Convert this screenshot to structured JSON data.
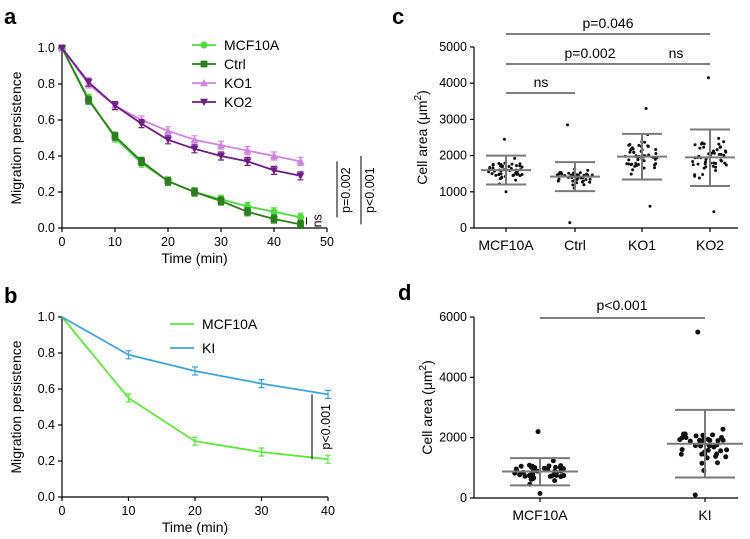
{
  "panels": {
    "a": "a",
    "b": "b",
    "c": "c",
    "d": "d"
  },
  "chart_data": [
    {
      "id": "a",
      "type": "line",
      "xlabel": "Time (min)",
      "ylabel": "Migration persistence",
      "xlim": [
        0,
        50
      ],
      "ylim": [
        0,
        1.0
      ],
      "xticks": [
        "0",
        "10",
        "20",
        "30",
        "40",
        "50"
      ],
      "yticks": [
        "0.0",
        "0.2",
        "0.4",
        "0.6",
        "0.8",
        "1.0"
      ],
      "x": [
        0,
        5,
        10,
        15,
        20,
        25,
        30,
        35,
        40,
        45
      ],
      "series": [
        {
          "name": "MCF10A",
          "color": "#4ddc3c",
          "marker": "circle",
          "values": [
            1.0,
            0.72,
            0.5,
            0.36,
            0.26,
            0.2,
            0.16,
            0.12,
            0.09,
            0.06
          ]
        },
        {
          "name": "Ctrl",
          "color": "#2a7f1c",
          "marker": "square",
          "values": [
            1.0,
            0.71,
            0.51,
            0.37,
            0.26,
            0.2,
            0.15,
            0.09,
            0.05,
            0.02
          ]
        },
        {
          "name": "KO1",
          "color": "#d183e1",
          "marker": "triangle",
          "values": [
            1.0,
            0.8,
            0.68,
            0.6,
            0.54,
            0.49,
            0.46,
            0.43,
            0.4,
            0.37
          ]
        },
        {
          "name": "KO2",
          "color": "#6e1d87",
          "marker": "triangle-down",
          "values": [
            1.0,
            0.81,
            0.68,
            0.58,
            0.49,
            0.44,
            0.4,
            0.37,
            0.32,
            0.29
          ]
        }
      ],
      "annotations": [
        "ns",
        "p=0.002",
        "p<0.001"
      ]
    },
    {
      "id": "b",
      "type": "line",
      "xlabel": "Time (min)",
      "ylabel": "Migration persistence",
      "xlim": [
        0,
        40
      ],
      "ylim": [
        0,
        1.0
      ],
      "xticks": [
        "0",
        "10",
        "20",
        "30",
        "40"
      ],
      "yticks": [
        "0.0",
        "0.2",
        "0.4",
        "0.6",
        "0.8",
        "1.0"
      ],
      "x": [
        0,
        10,
        20,
        30,
        40
      ],
      "series": [
        {
          "name": "MCF10A",
          "color": "#5ee83a",
          "values": [
            1.0,
            0.55,
            0.31,
            0.25,
            0.21
          ]
        },
        {
          "name": "KI",
          "color": "#3fa5d8",
          "values": [
            1.0,
            0.79,
            0.7,
            0.63,
            0.57
          ]
        }
      ],
      "annotations": [
        "p<0.001"
      ]
    },
    {
      "id": "c",
      "type": "scatter",
      "ylabel": "Cell area (μm²)",
      "ylabel_main": "Cell area (μm",
      "ylabel_sup": "2",
      "ylabel_close": ")",
      "ylim": [
        0,
        5000
      ],
      "yticks": [
        "0",
        "1000",
        "2000",
        "3000",
        "4000",
        "5000"
      ],
      "categories": [
        "MCF10A",
        "Ctrl",
        "KO1",
        "KO2"
      ],
      "mean": [
        1600,
        1420,
        1970,
        1950
      ],
      "sd_low": [
        1200,
        1020,
        1340,
        1160
      ],
      "sd_high": [
        2000,
        1820,
        2600,
        2720
      ],
      "range": [
        [
          1000,
          2450
        ],
        [
          150,
          2850
        ],
        [
          600,
          3300
        ],
        [
          450,
          4150
        ]
      ],
      "n": [
        50,
        45,
        55,
        50
      ],
      "annotations": [
        "p=0.046",
        "p=0.002",
        "ns",
        "ns"
      ]
    },
    {
      "id": "d",
      "type": "scatter",
      "ylabel": "Cell area (μm²)",
      "ylabel_main": "Cell area (μm",
      "ylabel_sup": "2",
      "ylabel_close": ")",
      "ylim": [
        0,
        6000
      ],
      "yticks": [
        "0",
        "2000",
        "4000",
        "6000"
      ],
      "categories": [
        "MCF10A",
        "KI"
      ],
      "mean": [
        880,
        1800
      ],
      "sd_low": [
        420,
        680
      ],
      "sd_high": [
        1320,
        2920
      ],
      "range": [
        [
          150,
          2200
        ],
        [
          100,
          5500
        ]
      ],
      "n": [
        42,
        42
      ],
      "annotations": [
        "p<0.001"
      ]
    }
  ]
}
